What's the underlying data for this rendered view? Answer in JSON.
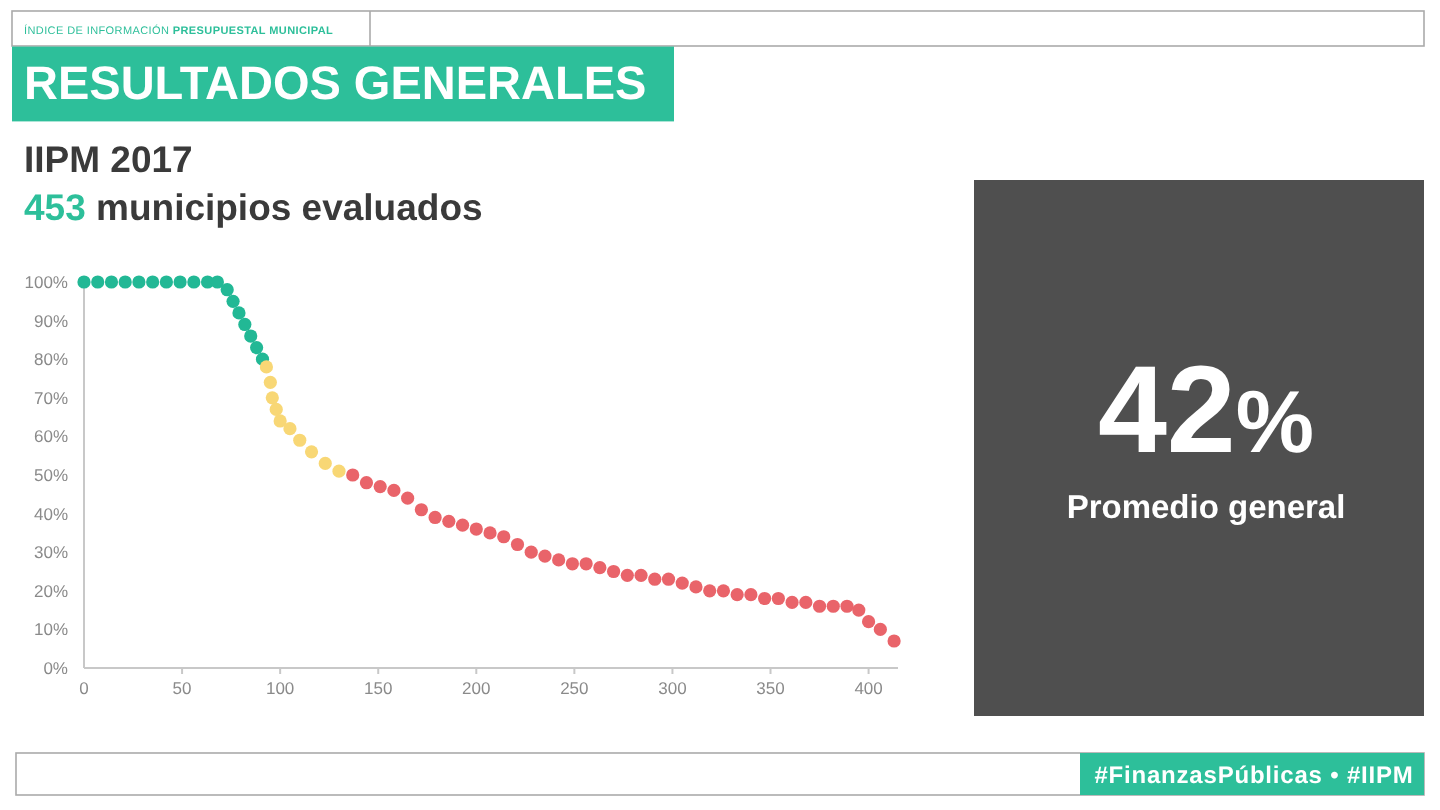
{
  "chart_data": {
    "type": "scatter",
    "title": "RESULTADOS GENERALES",
    "subtitle": "IIPM 2017",
    "annotations": [
      "ÍNDICE DE INFORMACIÓN PRESUPUESTAL MUNICIPAL",
      "453 municipios evaluados",
      "42%",
      "Promedio general",
      "#FinanzasPúblicas • #IIPM"
    ],
    "xlim": [
      0,
      415
    ],
    "xticks": [
      0,
      50,
      100,
      150,
      200,
      250,
      300,
      350,
      400
    ],
    "ylim": [
      0,
      100
    ],
    "yticks": [
      {
        "value": 0,
        "label": "0%"
      },
      {
        "value": 10,
        "label": "10%"
      },
      {
        "value": 20,
        "label": "20%"
      },
      {
        "value": 30,
        "label": "30%"
      },
      {
        "value": 40,
        "label": "40%"
      },
      {
        "value": 50,
        "label": "50%"
      },
      {
        "value": 60,
        "label": "60%"
      },
      {
        "value": 70,
        "label": "70%"
      },
      {
        "value": 80,
        "label": "80%"
      },
      {
        "value": 90,
        "label": "90%"
      },
      {
        "value": 100,
        "label": "100%"
      }
    ],
    "marker": "circle",
    "series": [
      {
        "color": "#22b895",
        "x": [
          0,
          7,
          14,
          21,
          28,
          35,
          42,
          49,
          56,
          63,
          68,
          73,
          76,
          79,
          82,
          85,
          88,
          91
        ],
        "values": [
          100,
          100,
          100,
          100,
          100,
          100,
          100,
          100,
          100,
          100,
          100,
          98,
          95,
          92,
          89,
          86,
          83,
          80
        ]
      },
      {
        "color": "#f8d775",
        "x": [
          93,
          95,
          96,
          98,
          100,
          105,
          110,
          116,
          123,
          130
        ],
        "values": [
          78,
          74,
          70,
          67,
          64,
          62,
          59,
          56,
          53,
          51
        ]
      },
      {
        "color": "#e9646a",
        "x": [
          137,
          144,
          151,
          158,
          165,
          172,
          179,
          186,
          193,
          200,
          207,
          214,
          221,
          228,
          235,
          242,
          249,
          256,
          263,
          270,
          277,
          284,
          291,
          298,
          305,
          312,
          319,
          326,
          333,
          340,
          347,
          354,
          361,
          368,
          375,
          382,
          389,
          395,
          400,
          406,
          413
        ],
        "values": [
          50,
          48,
          47,
          46,
          44,
          41,
          39,
          38,
          37,
          36,
          35,
          34,
          32,
          30,
          29,
          28,
          27,
          27,
          26,
          25,
          24,
          24,
          23,
          23,
          22,
          21,
          20,
          20,
          19,
          19,
          18,
          18,
          17,
          17,
          16,
          16,
          16,
          15,
          12,
          10,
          7
        ]
      }
    ]
  }
}
